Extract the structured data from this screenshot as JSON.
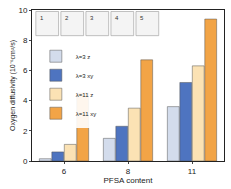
{
  "chart_data": {
    "type": "bar",
    "x_label": "PFSA content",
    "y_label": "Oxygen diffusivity (10⁻⁶cm²/s)",
    "categories": [
      "6",
      "8",
      "11"
    ],
    "series": [
      {
        "name": "λ=3 z",
        "color": "#d3dcec",
        "values": [
          0.15,
          1.5,
          3.6
        ]
      },
      {
        "name": "λ=3 xy",
        "color": "#4e74c0",
        "values": [
          0.6,
          2.3,
          5.2
        ]
      },
      {
        "name": "λ=11 z",
        "color": "#fbe2b4",
        "values": [
          1.1,
          3.5,
          6.3
        ]
      },
      {
        "name": "λ=11 xy",
        "color": "#f2a446",
        "values": [
          4.5,
          6.7,
          9.4
        ]
      }
    ],
    "annotations": [
      "1",
      "2",
      "3",
      "4",
      "5"
    ],
    "ylim": [
      0,
      10
    ],
    "yticks": [
      0,
      2,
      4,
      6,
      8,
      10
    ],
    "grid": false,
    "legend": "upper left"
  }
}
